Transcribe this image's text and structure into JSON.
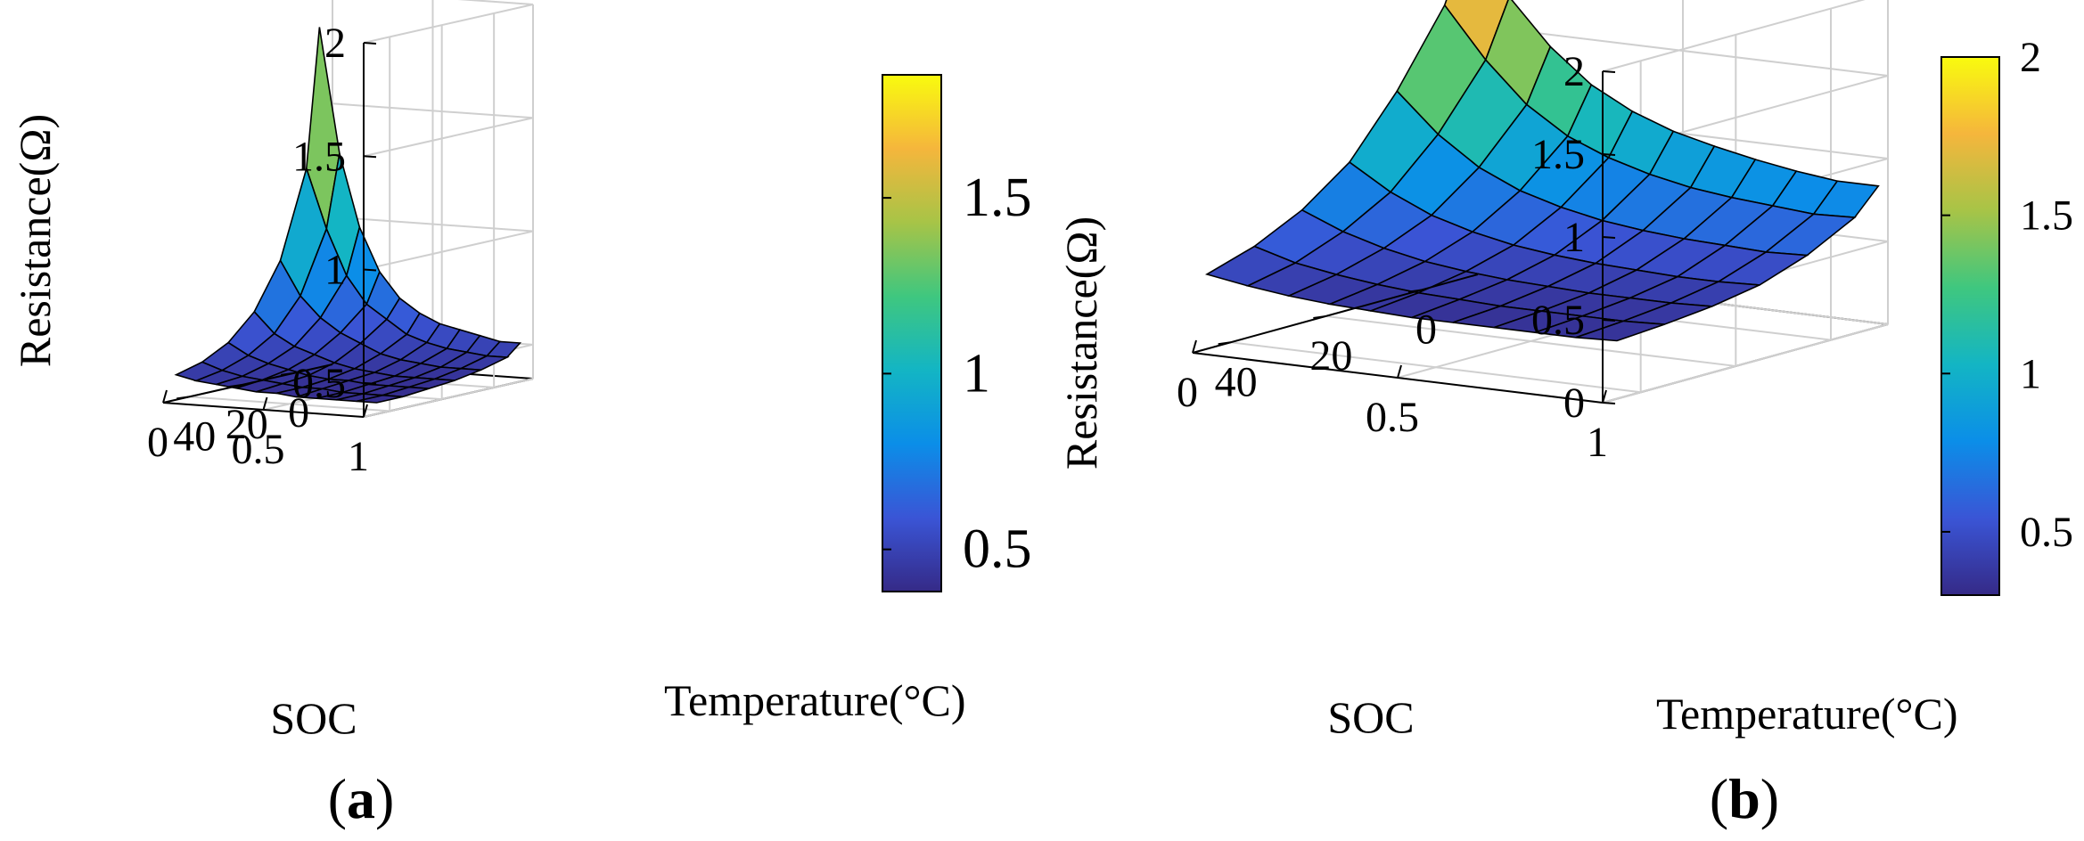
{
  "colors": {
    "parula": [
      "#352a87",
      "#3a55d6",
      "#0b8ee8",
      "#13b5c4",
      "#3fc77f",
      "#a7c447",
      "#f5b63c",
      "#f9fb0e"
    ]
  },
  "chart_data": [
    {
      "panel_label": "a",
      "type": "surface",
      "zlabel": "Resistance(Ω)",
      "xlabel": "SOC",
      "ylabel": "Temperature(°C)",
      "soc_ticks": [
        "1",
        "0.5",
        "0"
      ],
      "temp_ticks": [
        "40",
        "20",
        "0"
      ],
      "z_ticks": [
        "0.5",
        "1",
        "1.5",
        "2"
      ],
      "zlim": [
        0.35,
        2.0
      ],
      "colorbar_range": [
        0.38,
        1.85
      ],
      "colorbar_ticks": [
        "0.5",
        "1",
        "1.5"
      ],
      "soc": [
        1.0,
        0.9,
        0.8,
        0.7,
        0.6,
        0.5,
        0.4,
        0.3,
        0.2,
        0.1,
        0.0
      ],
      "temperature": [
        45,
        35,
        25,
        15,
        5,
        -5,
        -10
      ],
      "resistance": [
        [
          0.4,
          0.4,
          0.41,
          0.42,
          0.44,
          0.47,
          0.52
        ],
        [
          0.4,
          0.4,
          0.41,
          0.42,
          0.44,
          0.47,
          0.52
        ],
        [
          0.4,
          0.4,
          0.41,
          0.42,
          0.44,
          0.48,
          0.54
        ],
        [
          0.4,
          0.4,
          0.41,
          0.42,
          0.45,
          0.49,
          0.56
        ],
        [
          0.4,
          0.41,
          0.42,
          0.43,
          0.46,
          0.51,
          0.58
        ],
        [
          0.41,
          0.41,
          0.42,
          0.44,
          0.48,
          0.54,
          0.62
        ],
        [
          0.41,
          0.42,
          0.43,
          0.46,
          0.52,
          0.6,
          0.68
        ],
        [
          0.42,
          0.43,
          0.45,
          0.49,
          0.56,
          0.66,
          0.79
        ],
        [
          0.43,
          0.44,
          0.47,
          0.52,
          0.62,
          0.78,
          0.98
        ],
        [
          0.44,
          0.46,
          0.5,
          0.57,
          0.71,
          0.98,
          1.3
        ],
        [
          0.46,
          0.49,
          0.55,
          0.66,
          0.86,
          1.24,
          1.85
        ]
      ]
    },
    {
      "panel_label": "b",
      "type": "surface",
      "zlabel": "Resistance(Ω)",
      "xlabel": "SOC",
      "ylabel": "Temperature(°C)",
      "soc_ticks": [
        "1",
        "0.5",
        "0"
      ],
      "temp_ticks": [
        "40",
        "20",
        "0"
      ],
      "z_ticks": [
        "0",
        "0.5",
        "1",
        "1.5",
        "2"
      ],
      "zlim": [
        0.0,
        2.0
      ],
      "colorbar_range": [
        0.3,
        2.0
      ],
      "colorbar_ticks": [
        "0.5",
        "1",
        "1.5",
        "2"
      ],
      "soc": [
        1.0,
        0.9,
        0.8,
        0.7,
        0.6,
        0.5,
        0.4,
        0.3,
        0.2,
        0.1,
        0.0
      ],
      "temperature": [
        45,
        35,
        25,
        15,
        5,
        -5,
        -10
      ],
      "resistance": [
        [
          0.35,
          0.37,
          0.4,
          0.45,
          0.55,
          0.7,
          0.85
        ],
        [
          0.34,
          0.36,
          0.39,
          0.44,
          0.54,
          0.69,
          0.85
        ],
        [
          0.34,
          0.36,
          0.39,
          0.44,
          0.55,
          0.71,
          0.88
        ],
        [
          0.34,
          0.36,
          0.39,
          0.45,
          0.56,
          0.73,
          0.92
        ],
        [
          0.34,
          0.36,
          0.4,
          0.46,
          0.58,
          0.76,
          0.97
        ],
        [
          0.34,
          0.37,
          0.41,
          0.48,
          0.61,
          0.81,
          1.03
        ],
        [
          0.35,
          0.38,
          0.43,
          0.51,
          0.66,
          0.88,
          1.12
        ],
        [
          0.36,
          0.4,
          0.46,
          0.56,
          0.73,
          0.98,
          1.25
        ],
        [
          0.38,
          0.43,
          0.51,
          0.63,
          0.84,
          1.14,
          1.45
        ],
        [
          0.41,
          0.47,
          0.58,
          0.74,
          1.01,
          1.38,
          1.72
        ],
        [
          0.45,
          0.54,
          0.68,
          0.89,
          1.24,
          1.68,
          2.05
        ]
      ]
    }
  ]
}
